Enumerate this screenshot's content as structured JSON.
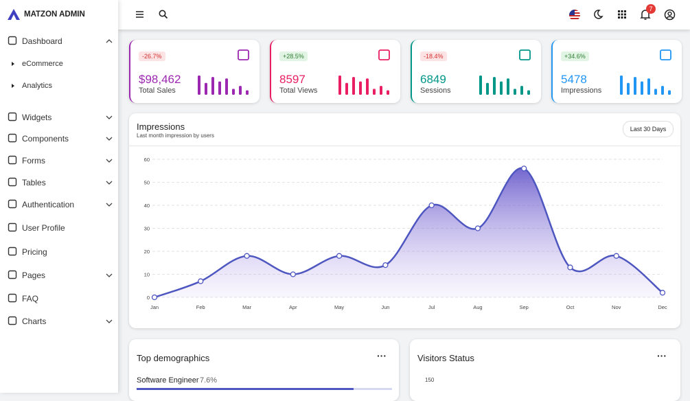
{
  "brand": "MATZON ADMIN",
  "sidebar": {
    "items": [
      {
        "label": "Dashboard",
        "submenu": true,
        "open": true,
        "children": [
          "eCommerce",
          "Analytics"
        ]
      },
      {
        "label": "Widgets",
        "submenu": true
      },
      {
        "label": "Components",
        "submenu": true
      },
      {
        "label": "Forms",
        "submenu": true
      },
      {
        "label": "Tables",
        "submenu": true
      },
      {
        "label": "Authentication",
        "submenu": true
      },
      {
        "label": "User Profile"
      },
      {
        "label": "Pricing"
      },
      {
        "label": "Pages",
        "submenu": true
      },
      {
        "label": "FAQ"
      },
      {
        "label": "Charts",
        "submenu": true
      }
    ]
  },
  "notifications": 7,
  "stats": [
    {
      "change": "-26.7%",
      "value": "$98,462",
      "label": "Total Sales",
      "color": "#9c27b0",
      "bars": [
        26,
        16,
        24,
        18,
        22,
        8,
        12,
        6
      ]
    },
    {
      "change": "+28.5%",
      "value": "8597",
      "label": "Total Views",
      "color": "#e91e63",
      "bars": [
        26,
        16,
        24,
        18,
        22,
        8,
        12,
        6
      ]
    },
    {
      "change": "-18.4%",
      "value": "6849",
      "label": "Sessions",
      "color": "#009688",
      "bars": [
        26,
        16,
        24,
        18,
        22,
        8,
        12,
        6
      ]
    },
    {
      "change": "+34.6%",
      "value": "5478",
      "label": "Impressions",
      "color": "#2196f3",
      "bars": [
        26,
        16,
        24,
        18,
        22,
        8,
        12,
        6
      ]
    }
  ],
  "impressions": {
    "title": "Impressions",
    "subtitle": "Last month impression by users",
    "button": "Last 30 Days",
    "chart": {
      "type": "area",
      "categories": [
        "Jan",
        "Feb",
        "Mar",
        "Apr",
        "May",
        "Jun",
        "Jul",
        "Aug",
        "Sep",
        "Oct",
        "Nov",
        "Dec"
      ],
      "values": [
        0,
        7,
        18,
        10,
        18,
        14,
        40,
        30,
        56,
        13,
        18,
        2
      ],
      "color": "#4e56c0",
      "ylim": [
        0,
        60
      ],
      "yticks": [
        0,
        10,
        20,
        30,
        40,
        50,
        60
      ],
      "grid": true
    }
  },
  "demographics": {
    "title": "Top demographics",
    "rows": [
      {
        "name": "Software Engineer",
        "share": "7.6%"
      }
    ]
  },
  "visitors": {
    "title": "Visitors Status",
    "yticks": [
      150
    ]
  }
}
